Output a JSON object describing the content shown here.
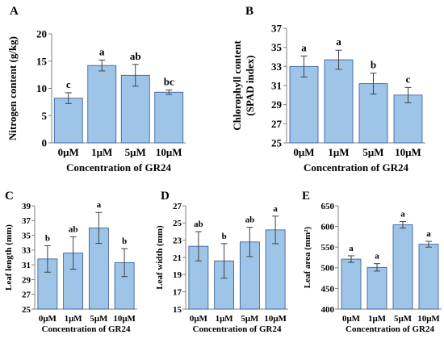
{
  "chart_data": [
    {
      "panel": "A",
      "type": "bar",
      "categories": [
        "0μM",
        "1μM",
        "5μM",
        "10μM"
      ],
      "values": [
        8.2,
        14.2,
        12.4,
        9.3
      ],
      "errors": [
        1.0,
        1.0,
        2.0,
        0.4
      ],
      "letters": [
        "c",
        "a",
        "ab",
        "bc"
      ],
      "ylabel": "Nitrogen content (g/kg)",
      "xlabel": "Concentration of GR24",
      "ylim": [
        0,
        20
      ],
      "yticks": [
        "0",
        "5",
        "10",
        "15",
        "20"
      ]
    },
    {
      "panel": "B",
      "type": "bar",
      "categories": [
        "0μM",
        "1μM",
        "5μM",
        "10μM"
      ],
      "values": [
        33.0,
        33.7,
        31.2,
        30.0
      ],
      "errors": [
        1.1,
        1.0,
        1.1,
        0.8
      ],
      "letters": [
        "a",
        "a",
        "b",
        "c"
      ],
      "ylabel": [
        "Chlorophyll content",
        "(SPAD index)"
      ],
      "xlabel": "Concentration of GR24",
      "ylim": [
        25,
        37
      ],
      "yticks": [
        "25",
        "27",
        "29",
        "31",
        "33",
        "35",
        "37"
      ]
    },
    {
      "panel": "C",
      "type": "bar",
      "categories": [
        "0μM",
        "1μM",
        "5μM",
        "10μM"
      ],
      "values": [
        31.8,
        32.6,
        36.0,
        31.3
      ],
      "errors": [
        1.8,
        2.2,
        2.1,
        1.9
      ],
      "letters": [
        "b",
        "ab",
        "a",
        "b"
      ],
      "ylabel": "Leaf length (mm)",
      "xlabel": "Concentration of GR24",
      "ylim": [
        25,
        39
      ],
      "yticks": [
        "25",
        "27",
        "29",
        "31",
        "33",
        "35",
        "37",
        "39"
      ]
    },
    {
      "panel": "D",
      "type": "bar",
      "categories": [
        "0μM",
        "1μM",
        "5μM",
        "10μM"
      ],
      "values": [
        22.3,
        20.6,
        22.8,
        24.2
      ],
      "errors": [
        1.7,
        2.0,
        1.7,
        1.6
      ],
      "letters": [
        "ab",
        "b",
        "ab",
        "a"
      ],
      "ylabel": "Leaf width (mm)",
      "xlabel": "Concentration of GR24",
      "ylim": [
        15,
        27
      ],
      "yticks": [
        "15",
        "17",
        "19",
        "21",
        "23",
        "25",
        "27"
      ]
    },
    {
      "panel": "E",
      "type": "bar",
      "categories": [
        "0μM",
        "1μM",
        "5μM",
        "10μM"
      ],
      "values": [
        521,
        501,
        604,
        557
      ],
      "errors": [
        8,
        9,
        8,
        7
      ],
      "letters": [
        "a",
        "a",
        "a",
        "a"
      ],
      "ylabel": "Leaf area (mm²)",
      "xlabel": "Concentration of GR24",
      "ylim": [
        400,
        650
      ],
      "yticks": [
        "400",
        "450",
        "500",
        "550",
        "600",
        "650"
      ]
    }
  ],
  "colors": {
    "bar_fill": "#9ec5e8",
    "bar_edge": "#2f5597",
    "axis": "#7f7f7f"
  }
}
